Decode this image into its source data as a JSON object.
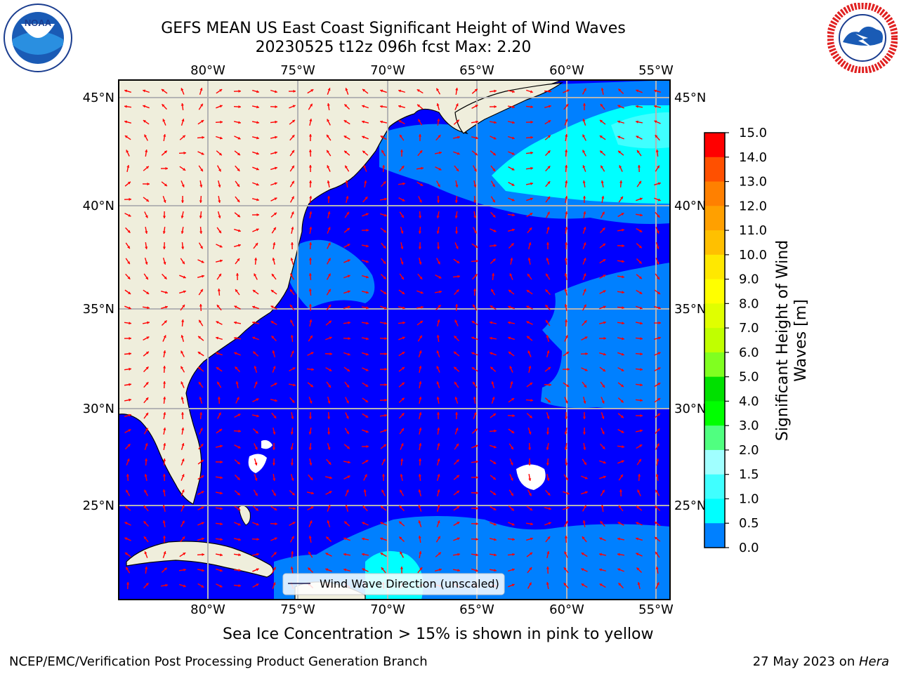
{
  "title": {
    "line1": "GEFS MEAN US East Coast Significant Height of Wind Waves",
    "line2": "20230525 t12z 096h fcst   Max: 2.20"
  },
  "logos": {
    "left": {
      "name": "noaa-logo",
      "text": "NOAA",
      "ring_text": "NATIONAL OCEANIC AND ATMOSPHERIC ADMINISTRATION · U.S. DEPARTMENT OF COMMERCE"
    },
    "right": {
      "name": "nws-logo",
      "ring_text": "NATIONAL WEATHER SERVICE"
    }
  },
  "map": {
    "lon_labels": [
      "80°W",
      "75°W",
      "70°W",
      "65°W",
      "60°W",
      "55°W"
    ],
    "lat_labels": [
      "45°N",
      "40°N",
      "35°N",
      "30°N",
      "25°N"
    ],
    "legend_label": "Wind Wave Direction (unscaled)",
    "colors": {
      "land": "#efeedc",
      "wave_0_0_5": "#0000ff",
      "wave_0_5_1_0": "#0080ff",
      "wave_1_0_1_5": "#00ffff",
      "wave_1_5_2_0": "#40ffff",
      "arrows": "#ff0000",
      "grid": "#b4b4b4"
    }
  },
  "colorbar": {
    "title": "Significant Height of Wind Waves [m]",
    "title_line1": "Significant Height of Wind",
    "title_line2": "Waves [m]",
    "ticks": [
      "15.0",
      "14.0",
      "13.0",
      "12.0",
      "11.0",
      "10.0",
      "9.0",
      "8.0",
      "7.0",
      "6.0",
      "5.0",
      "4.0",
      "3.0",
      "2.0",
      "1.5",
      "1.0",
      "0.5",
      "0.0"
    ],
    "colors": [
      "#ff0000",
      "#ff2000",
      "#ff5000",
      "#ff8000",
      "#ffa000",
      "#ffc000",
      "#ffe800",
      "#ffff00",
      "#e0ff00",
      "#c0ff00",
      "#80ff20",
      "#00e000",
      "#00ff00",
      "#50ff80",
      "#a0ffff",
      "#40ffff",
      "#00ffff",
      "#0080ff",
      "#0000ff"
    ]
  },
  "caption": "Sea Ice Concentration > 15% is shown in pink to yellow",
  "footer": {
    "left": "NCEP/EMC/Verification Post Processing Product Generation Branch",
    "right_prefix": "27 May 2023 on ",
    "right_host": "Hera"
  }
}
